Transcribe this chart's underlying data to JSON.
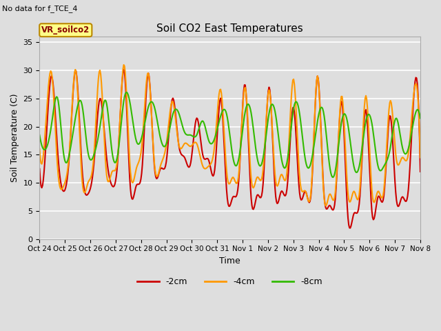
{
  "title": "Soil CO2 East Temperatures",
  "subtitle": "No data for f_TCE_4",
  "box_label": "VR_soilco2",
  "xlabel": "Time",
  "ylabel": "Soil Temperature (C)",
  "ylim": [
    0,
    36
  ],
  "yticks": [
    0,
    5,
    10,
    15,
    20,
    25,
    30,
    35
  ],
  "xtick_labels": [
    "Oct 24",
    "Oct 25",
    "Oct 26",
    "Oct 27",
    "Oct 28",
    "Oct 29",
    "Oct 30",
    "Oct 31",
    "Nov 1",
    "Nov 2",
    "Nov 3",
    "Nov 4",
    "Nov 5",
    "Nov 6",
    "Nov 7",
    "Nov 8"
  ],
  "legend": [
    {
      "label": "-2cm",
      "color": "#cc0000"
    },
    {
      "label": "-4cm",
      "color": "#ff9900"
    },
    {
      "label": "-8cm",
      "color": "#33bb00"
    }
  ],
  "bg_color": "#dedede",
  "plot_bg_color": "#dedede",
  "grid_color": "#ffffff",
  "line_width": 1.5,
  "num_days": 15,
  "series_2cm": [
    12.5,
    16.0,
    29.0,
    15.5,
    8.5,
    16.0,
    30.0,
    13.0,
    8.0,
    13.5,
    25.0,
    15.5,
    9.5,
    15.0,
    30.0,
    9.5,
    9.5,
    13.0,
    29.5,
    13.0,
    12.5,
    14.0,
    25.0,
    17.0,
    14.5,
    13.5,
    21.5,
    15.0,
    14.0,
    12.5,
    25.0,
    8.0,
    7.5,
    11.0,
    27.5,
    7.5,
    7.8,
    10.0,
    27.0,
    8.5,
    8.5,
    9.5,
    23.5,
    8.5,
    8.5,
    9.0,
    29.0,
    9.0,
    6.0,
    8.0,
    24.5,
    4.3,
    4.5,
    7.5,
    23.0,
    4.8,
    7.5,
    8.0,
    22.0,
    7.5,
    7.5,
    8.5,
    26.5,
    12.0
  ],
  "series_4cm": [
    16.0,
    20.0,
    29.5,
    12.5,
    9.5,
    16.5,
    30.0,
    11.0,
    10.0,
    15.0,
    30.0,
    12.5,
    12.0,
    15.5,
    31.0,
    12.5,
    12.5,
    17.5,
    29.5,
    13.5,
    13.0,
    17.0,
    24.5,
    17.0,
    17.0,
    16.5,
    17.0,
    13.0,
    13.0,
    17.0,
    26.5,
    11.5,
    11.0,
    12.0,
    27.0,
    11.0,
    11.0,
    12.5,
    26.5,
    11.0,
    11.5,
    12.5,
    28.5,
    11.5,
    8.5,
    9.5,
    29.0,
    8.5,
    8.0,
    9.0,
    25.5,
    8.5,
    8.5,
    9.0,
    25.5,
    8.5,
    8.5,
    9.0,
    24.5,
    14.5,
    14.5,
    15.0,
    26.5,
    14.5
  ],
  "series_8cm": [
    18.5,
    16.0,
    20.5,
    25.0,
    15.0,
    15.5,
    22.0,
    24.0,
    15.5,
    15.0,
    20.0,
    24.5,
    15.5,
    15.5,
    25.0,
    24.0,
    17.5,
    18.5,
    23.5,
    23.5,
    18.0,
    17.0,
    22.0,
    22.5,
    19.0,
    18.5,
    18.5,
    21.0,
    17.5,
    18.0,
    22.0,
    22.0,
    14.5,
    14.5,
    22.5,
    22.5,
    14.5,
    14.5,
    22.5,
    22.5,
    14.5,
    14.0,
    23.0,
    22.5,
    14.0,
    14.0,
    21.0,
    22.5,
    13.0,
    12.5,
    21.0,
    20.5,
    13.0,
    13.5,
    21.0,
    20.5,
    13.0,
    13.0,
    16.0,
    21.5,
    16.5,
    16.0,
    21.5,
    21.5
  ]
}
